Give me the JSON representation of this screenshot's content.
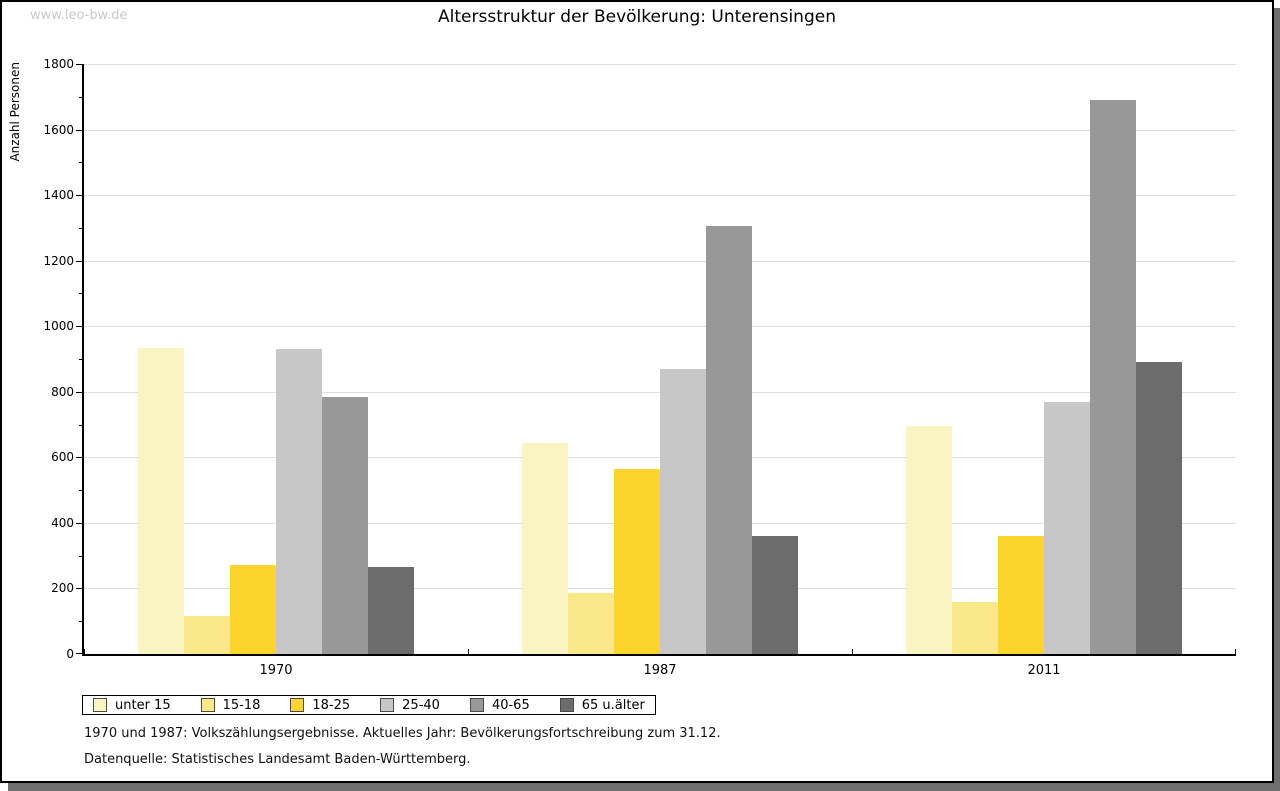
{
  "watermark": "www.leo-bw.de",
  "header": {
    "title": "Altersstruktur der Bevölkerung: Unterensingen"
  },
  "footnotes": [
    "1970 und 1987: Volkszählungsergebnisse. Aktuelles Jahr: Bevölkerungsfortschreibung zum 31.12.",
    "Datenquelle: Statistisches Landesamt Baden-Württemberg."
  ],
  "chart_data": {
    "type": "bar",
    "title": "Altersstruktur der Bevölkerung: Unterensingen",
    "xlabel": "",
    "ylabel": "Anzahl Personen",
    "ylim": [
      0,
      1800
    ],
    "ytick_major_step": 200,
    "ytick_minor_step": 100,
    "grid": true,
    "legend_position": "bottom",
    "categories": [
      "1970",
      "1987",
      "2011"
    ],
    "series": [
      {
        "name": "unter 15",
        "color": "#FAF3C2",
        "values": [
          935,
          645,
          695
        ]
      },
      {
        "name": "15-18",
        "color": "#FBE888",
        "values": [
          115,
          185,
          160
        ]
      },
      {
        "name": "18-25",
        "color": "#FBD42C",
        "values": [
          270,
          565,
          360
        ]
      },
      {
        "name": "25-40",
        "color": "#C7C7C8",
        "values": [
          930,
          870,
          770
        ]
      },
      {
        "name": "40-65",
        "color": "#989898",
        "values": [
          785,
          1305,
          1690
        ]
      },
      {
        "name": "65 u.älter",
        "color": "#6C6C6D",
        "values": [
          265,
          360,
          890
        ]
      }
    ],
    "grid_color": "#DEDEDE",
    "frame_shadow_color": "#6F6F6F"
  }
}
